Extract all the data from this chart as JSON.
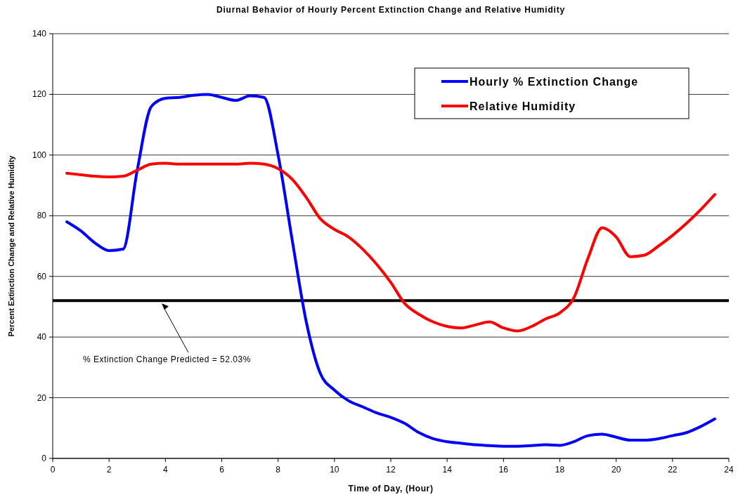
{
  "chart_data": {
    "type": "line",
    "title": "Diurnal Behavior of Hourly Percent Extinction Change and Relative Humidity",
    "xlabel": "Time of Day, (Hour)",
    "ylabel": "Percent Extinction Change and Relative Humidity",
    "x": [
      0.5,
      1,
      1.5,
      2,
      2.5,
      3,
      3.5,
      4,
      4.5,
      5,
      5.5,
      6,
      6.5,
      7,
      7.5,
      8,
      8.5,
      9,
      9.5,
      10,
      10.5,
      11,
      11.5,
      12,
      12.5,
      13,
      13.5,
      14,
      14.5,
      15,
      15.5,
      16,
      16.5,
      17,
      17.5,
      18,
      18.5,
      19,
      19.5,
      20,
      20.5,
      21,
      21.5,
      22,
      22.5,
      23,
      23.5
    ],
    "series": [
      {
        "name": "Hourly % Extinction Change",
        "color": "#0000ff",
        "values": [
          78,
          75,
          71,
          68.5,
          69,
          95,
          116,
          118.7,
          119,
          119.7,
          120,
          119,
          118,
          119.5,
          119,
          100,
          72,
          45,
          28,
          22.5,
          19,
          17,
          15,
          13.5,
          11.5,
          8.5,
          6.5,
          5.5,
          5,
          4.5,
          4.2,
          4,
          4,
          4.2,
          4.5,
          4.3,
          5.5,
          7.5,
          8,
          7,
          6,
          6,
          6.5,
          7.5,
          8.5,
          10.5,
          13
        ]
      },
      {
        "name": "Relative Humidity",
        "color": "#ff0000",
        "values": [
          94,
          93.5,
          93,
          92.8,
          93,
          95,
          97,
          97.3,
          97,
          97,
          97,
          97,
          97,
          97.3,
          97,
          95.5,
          92,
          86,
          79,
          75.5,
          73,
          69,
          64,
          58,
          51,
          47.5,
          45,
          43.5,
          43,
          44,
          45,
          43,
          42,
          43.5,
          46,
          48,
          53,
          66,
          76,
          73,
          66.5,
          67,
          70,
          73.5,
          77.5,
          82,
          87
        ]
      }
    ],
    "xlim": [
      0,
      24
    ],
    "xticks": [
      0,
      2,
      4,
      6,
      8,
      10,
      12,
      14,
      16,
      18,
      20,
      22,
      24
    ],
    "ylim": [
      0,
      140
    ],
    "yticks": [
      0,
      20,
      40,
      60,
      80,
      100,
      120,
      140
    ],
    "grid": "y",
    "legend": "top right",
    "line_style": "solid",
    "marker": "none",
    "ref_lines": [
      {
        "axis": "y",
        "value": 52.03,
        "color": "#000000"
      }
    ],
    "annotations": [
      "% Extinction Change Predicted = 52.03%"
    ]
  }
}
